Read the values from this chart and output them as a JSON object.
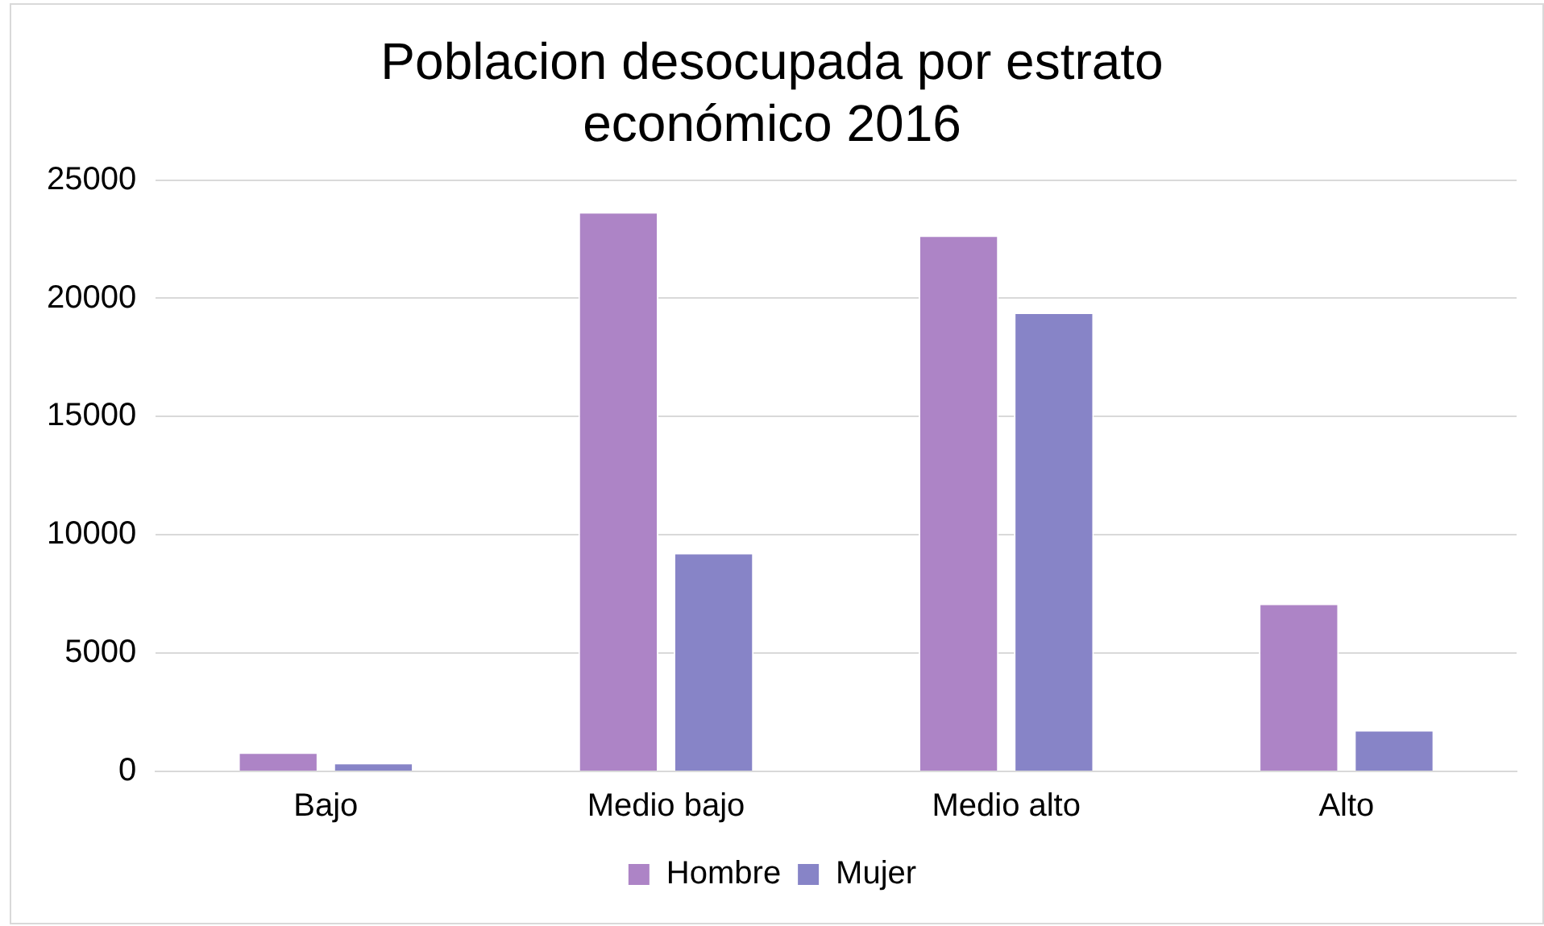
{
  "chart_data": {
    "type": "bar",
    "title": [
      "Poblacion desocupada por estrato",
      "económico 2016"
    ],
    "categories": [
      "Bajo",
      "Medio bajo",
      "Medio alto",
      "Alto"
    ],
    "series": [
      {
        "name": "Hombre",
        "color": "#ad84c6",
        "values": [
          810,
          23650,
          22660,
          7100
        ]
      },
      {
        "name": "Mujer",
        "color": "#8784c7",
        "values": [
          370,
          9240,
          19400,
          1750
        ]
      }
    ],
    "ylim": [
      0,
      25000
    ],
    "yticks": [
      0,
      5000,
      10000,
      15000,
      20000,
      25000
    ],
    "grid": "y",
    "legend": "bottom"
  }
}
